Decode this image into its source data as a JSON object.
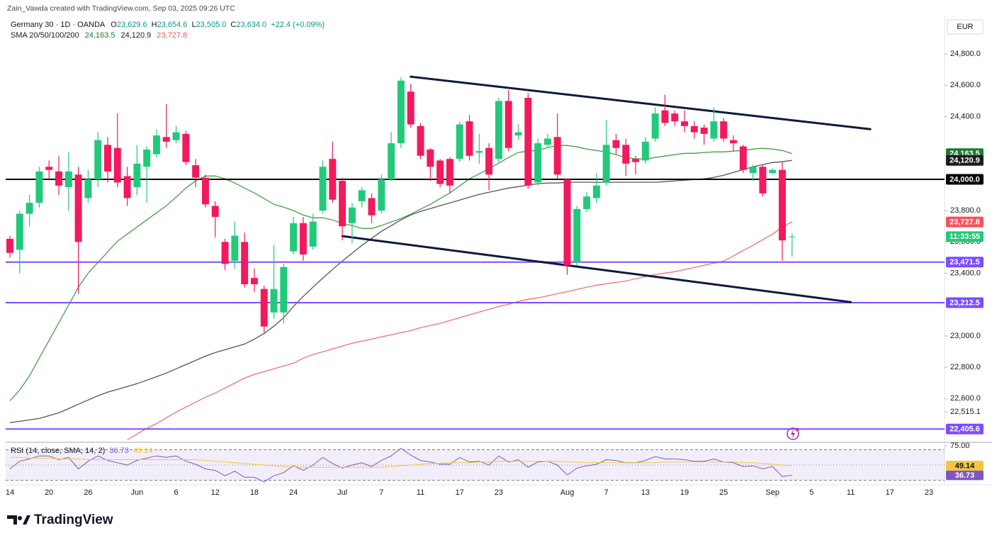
{
  "header": {
    "attribution": "Zain_Vawda created with TradingView.com, Sep 03, 2025 09:26 UTC",
    "symbol": "Germany 30 · 1D · OANDA",
    "ohlc": [
      {
        "key": "O",
        "value": "23,629.6"
      },
      {
        "key": "H",
        "value": "23,654.6"
      },
      {
        "key": "L",
        "value": "23,505.0"
      },
      {
        "key": "C",
        "value": "23,634.0"
      }
    ],
    "change": "+22.4 (+0.09%)",
    "indicator": "SMA 20/50/100/200",
    "currency": "EUR"
  },
  "footer": {
    "brand": "TradingView"
  },
  "chart_data": [
    {
      "type": "candlestick",
      "up_color": "#22c97a",
      "down_color": "#f2195c",
      "categories": [
        "14",
        null,
        null,
        null,
        "20",
        null,
        null,
        null,
        "26",
        null,
        null,
        null,
        null,
        "Jun",
        null,
        null,
        null,
        "6",
        null,
        null,
        null,
        "12",
        null,
        null,
        null,
        "18",
        null,
        null,
        null,
        "24",
        null,
        null,
        null,
        null,
        "Jul",
        null,
        null,
        null,
        "7",
        null,
        null,
        null,
        "11",
        null,
        null,
        null,
        "17",
        null,
        null,
        null,
        "23",
        null,
        null,
        null,
        null,
        null,
        null,
        "Aug",
        null,
        null,
        null,
        "7",
        null,
        null,
        null,
        "13",
        null,
        null,
        null,
        "19",
        null,
        null,
        null,
        "25",
        null,
        null,
        null,
        null,
        "Sep",
        null,
        null,
        null,
        "5",
        null,
        null,
        null,
        "11",
        null,
        null,
        null,
        "17",
        null,
        null,
        null,
        "23"
      ],
      "open": [
        23620,
        23550,
        23780,
        23850,
        24080,
        24050,
        23950,
        24030,
        23880,
        24000,
        24220,
        24200,
        24020,
        23950,
        24080,
        24160,
        24270,
        24250,
        24290,
        24090,
        24010,
        23830,
        23600,
        23480,
        23600,
        23370,
        23300,
        23150,
        23150,
        23540,
        23720,
        23570,
        23800,
        24130,
        23990,
        23720,
        23860,
        23880,
        23800,
        24000,
        24230,
        24560,
        24340,
        24190,
        24120,
        24130,
        24130,
        24370,
        24170,
        24200,
        24130,
        24500,
        24280,
        24520,
        23980,
        24220,
        24270,
        24000,
        23470,
        23810,
        23880,
        23980,
        24250,
        24220,
        24130,
        24120,
        24260,
        24440,
        24420,
        24370,
        24340,
        24330,
        24260,
        24370,
        24250,
        24210,
        24040,
        24080,
        24040,
        24060,
        23629.6,
        null,
        null,
        null,
        null,
        null,
        null,
        null,
        null,
        null,
        null,
        null,
        null,
        null,
        null
      ],
      "high": [
        23640,
        23800,
        23900,
        24080,
        24120,
        24150,
        24175,
        24080,
        24060,
        24300,
        24270,
        24420,
        24080,
        24220,
        24210,
        24320,
        24480,
        24340,
        24310,
        24130,
        24030,
        23860,
        23620,
        23730,
        23660,
        23430,
        23320,
        23580,
        23460,
        23760,
        23760,
        23780,
        24120,
        24240,
        24010,
        23850,
        23950,
        23910,
        24030,
        24300,
        24650,
        24610,
        24360,
        24200,
        24130,
        24140,
        24370,
        24410,
        24290,
        24230,
        24520,
        24570,
        24350,
        24550,
        24260,
        24290,
        24420,
        24000,
        23830,
        23920,
        24040,
        24380,
        24290,
        24260,
        24150,
        24270,
        24460,
        24540,
        24440,
        24440,
        24370,
        24350,
        24460,
        24390,
        24280,
        24220,
        24090,
        24090,
        24070,
        24110,
        23654.6,
        null,
        null,
        null,
        null,
        null,
        null,
        null,
        null,
        null,
        null,
        null,
        null,
        null,
        null
      ],
      "low": [
        23500,
        23400,
        23700,
        23820,
        24000,
        23900,
        23800,
        23270,
        23850,
        23950,
        23980,
        23950,
        23830,
        23900,
        23850,
        24140,
        24200,
        24230,
        24090,
        23950,
        23820,
        23630,
        23420,
        23430,
        23310,
        23280,
        23020,
        23110,
        23080,
        23520,
        23480,
        23550,
        23780,
        23850,
        23610,
        23590,
        23820,
        23720,
        23780,
        23990,
        24200,
        24330,
        24130,
        23990,
        23950,
        23910,
        24110,
        24120,
        24100,
        23930,
        24100,
        24180,
        24250,
        23940,
        23960,
        24200,
        24000,
        23390,
        23450,
        23790,
        23850,
        23960,
        24160,
        24020,
        24030,
        24100,
        24240,
        24340,
        24340,
        24300,
        24260,
        24220,
        24240,
        24240,
        24180,
        24040,
        23990,
        23890,
        24030,
        23480,
        23505.0,
        null,
        null,
        null,
        null,
        null,
        null,
        null,
        null,
        null,
        null,
        null,
        null,
        null,
        null
      ],
      "close": [
        23530,
        23780,
        23850,
        24050,
        24060,
        23960,
        24050,
        23600,
        24000,
        24250,
        24050,
        23980,
        23880,
        24100,
        24190,
        24280,
        24240,
        24300,
        24110,
        24010,
        23840,
        23760,
        23460,
        23640,
        23330,
        23330,
        23060,
        23300,
        23440,
        23720,
        23520,
        23730,
        24080,
        23870,
        23700,
        23820,
        23930,
        23770,
        24000,
        24230,
        24630,
        24350,
        24150,
        24080,
        23970,
        23960,
        24350,
        24150,
        24180,
        24030,
        24500,
        24200,
        24300,
        23960,
        24230,
        24260,
        24030,
        23450,
        23810,
        23890,
        23960,
        24220,
        24200,
        24100,
        24110,
        24240,
        24420,
        24360,
        24370,
        24340,
        24300,
        24290,
        24370,
        24260,
        24230,
        24060,
        24080,
        23910,
        24060,
        23610,
        23634.0,
        null,
        null,
        null,
        null,
        null,
        null,
        null,
        null,
        null,
        null,
        null,
        null,
        null,
        null
      ],
      "series": [
        {
          "color": "#43a047",
          "values": [
            22586,
            22654,
            22745,
            22858,
            22971,
            23084,
            23197,
            23311,
            23401,
            23469,
            23537,
            23605,
            23650,
            23695,
            23741,
            23786,
            23831,
            23886,
            23944,
            23990,
            24021,
            24021,
            24003,
            23976,
            23944,
            23913,
            23877,
            23840,
            23822,
            23800,
            23772,
            23754,
            23754,
            23741,
            23718,
            23705,
            23686,
            23686,
            23705,
            23727,
            23750,
            23777,
            23809,
            23840,
            23877,
            23913,
            23958,
            24003,
            24035,
            24067,
            24103,
            24139,
            24171,
            24180,
            24184,
            24202,
            24216,
            24216,
            24207,
            24193,
            24184,
            24175,
            24157,
            24139,
            24130,
            24130,
            24139,
            24148,
            24157,
            24166,
            24166,
            24171,
            24175,
            24175,
            24180,
            24184,
            24193,
            24198,
            24193,
            24184,
            24163.5,
            null,
            null,
            null,
            null,
            null,
            null,
            null,
            null,
            null,
            null,
            null,
            null,
            null,
            null
          ]
        },
        {
          "color": "#555555",
          "values": [
            22446,
            22455,
            22464,
            22473,
            22491,
            22509,
            22536,
            22564,
            22591,
            22618,
            22641,
            22659,
            22677,
            22695,
            22718,
            22740,
            22763,
            22790,
            22817,
            22844,
            22871,
            22894,
            22912,
            22930,
            22948,
            22980,
            23016,
            23062,
            23116,
            23188,
            23252,
            23311,
            23369,
            23424,
            23478,
            23528,
            23578,
            23623,
            23668,
            23704,
            23741,
            23772,
            23795,
            23813,
            23831,
            23849,
            23867,
            23886,
            23904,
            23917,
            23931,
            23944,
            23953,
            23963,
            23972,
            23976,
            23976,
            23981,
            23981,
            23981,
            23981,
            23981,
            23981,
            23981,
            23981,
            23981,
            23981,
            23985,
            23990,
            23994,
            23999,
            24003,
            24012,
            24026,
            24044,
            24062,
            24080,
            24094,
            24107,
            24112,
            24120.9,
            null,
            null,
            null,
            null,
            null,
            null,
            null,
            null,
            null,
            null,
            null,
            null,
            null,
            null
          ]
        },
        {
          "color": "#f27171",
          "values": [
            null,
            null,
            null,
            null,
            null,
            null,
            null,
            null,
            null,
            null,
            null,
            null,
            22337,
            22374,
            22410,
            22441,
            22478,
            22514,
            22546,
            22577,
            22609,
            22636,
            22668,
            22699,
            22731,
            22754,
            22772,
            22790,
            22808,
            22826,
            22858,
            22881,
            22899,
            22917,
            22935,
            22953,
            22967,
            22980,
            22994,
            23007,
            23021,
            23034,
            23053,
            23066,
            23080,
            23098,
            23116,
            23134,
            23152,
            23170,
            23188,
            23202,
            23220,
            23234,
            23243,
            23256,
            23270,
            23283,
            23297,
            23311,
            23324,
            23333,
            23342,
            23351,
            23365,
            23379,
            23392,
            23401,
            23410,
            23424,
            23437,
            23451,
            23465,
            23478,
            23510,
            23546,
            23578,
            23614,
            23650,
            23695,
            23727.8,
            null,
            null,
            null,
            null,
            null,
            null,
            null,
            null,
            null,
            null,
            null,
            null,
            null,
            null
          ]
        }
      ],
      "price_tags": [
        {
          "value": 24163.5,
          "label": "24,163.5",
          "color": "#1e7b34"
        },
        {
          "value": 24120.9,
          "label": "24,120.9",
          "color": "#1c1c1c"
        },
        {
          "value": 23727.8,
          "label": "23,727.8",
          "color": "#f2545b"
        }
      ],
      "countdown": "11:33:55",
      "hlines": [
        {
          "value": 24000.0,
          "label": "24,000.0",
          "color": "#000000"
        },
        {
          "value": 23471.5,
          "label": "23,471.5",
          "color": "#7c4dff"
        },
        {
          "value": 23212.5,
          "label": "23,212.5",
          "color": "#7c4dff"
        },
        {
          "value": 22405.6,
          "label": "22,405.6",
          "color": "#7c4dff"
        }
      ],
      "trendlines": [
        {
          "x1": 41,
          "y1": 24655,
          "x2": 88,
          "y2": 24320,
          "color": "#0c1a3a"
        },
        {
          "x1": 34,
          "y1": 23637,
          "x2": 86,
          "y2": 23216,
          "color": "#0c1a3a"
        }
      ],
      "ylim": [
        22330,
        25045
      ],
      "yticks": [
        {
          "value": 22515.1,
          "label": "22,515.1"
        },
        {
          "value": 22600,
          "label": "22,600.0"
        },
        {
          "value": 22800,
          "label": "22,800.0"
        },
        {
          "value": 23000,
          "label": "23,000.0"
        },
        {
          "value": 23400,
          "label": "23,400.0"
        },
        {
          "value": 23600,
          "label": "23,600.0"
        },
        {
          "value": 23800,
          "label": "23,800.0"
        },
        {
          "value": 24400,
          "label": "24,400.0"
        },
        {
          "value": 24600,
          "label": "24,600.0"
        },
        {
          "value": 24800,
          "label": "24,800.0"
        }
      ]
    },
    {
      "type": "line",
      "title": "RSI (14, close, SMA, 14, 2)",
      "series": [
        {
          "color": "#7e57c2",
          "values": [
            45,
            55,
            58,
            62,
            62,
            57,
            60,
            45,
            55,
            62,
            56,
            53,
            50,
            56,
            59,
            62,
            60,
            62,
            55,
            51,
            45,
            43,
            36,
            42,
            34,
            34,
            28,
            36,
            40,
            49,
            43,
            50,
            60,
            52,
            46,
            50,
            53,
            48,
            56,
            62,
            72,
            63,
            56,
            54,
            51,
            51,
            60,
            54,
            55,
            50,
            62,
            54,
            57,
            47,
            54,
            55,
            50,
            37,
            46,
            49,
            51,
            57,
            56,
            53,
            53,
            56,
            61,
            58,
            58,
            57,
            55,
            55,
            58,
            54,
            53,
            48,
            49,
            45,
            48,
            35,
            36.73,
            null,
            null,
            null,
            null,
            null,
            null,
            null,
            null,
            null,
            null,
            null,
            null,
            null,
            null
          ]
        },
        {
          "color": "#f5c542",
          "values": [
            60,
            60,
            59,
            59,
            59,
            58,
            58,
            58,
            57,
            57,
            57,
            57,
            57,
            57,
            57,
            57,
            57,
            57,
            57,
            57,
            56,
            55,
            54,
            53,
            52,
            51,
            50,
            49,
            48,
            48,
            47,
            47,
            47,
            47,
            47,
            47,
            47,
            47,
            47,
            48,
            49,
            50,
            51,
            52,
            52,
            53,
            53,
            53,
            54,
            54,
            55,
            55,
            55,
            55,
            55,
            55,
            55,
            54,
            54,
            53,
            53,
            53,
            53,
            53,
            53,
            53,
            53,
            54,
            54,
            54,
            54,
            54,
            54,
            54,
            54,
            53,
            53,
            52,
            51,
            50,
            49.14,
            null,
            null,
            null,
            null,
            null,
            null,
            null,
            null,
            null,
            null,
            null,
            null,
            null,
            null
          ]
        }
      ],
      "levels": [
        70,
        50,
        30
      ],
      "ylim": [
        25,
        77
      ],
      "yticks": [
        {
          "value": 75,
          "label": "75.00"
        }
      ]
    }
  ]
}
